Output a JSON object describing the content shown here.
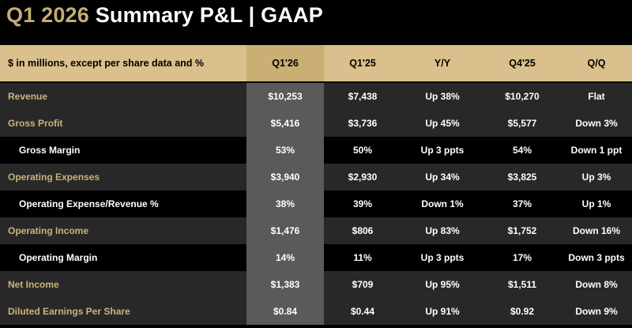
{
  "title": {
    "period": "Q1 2026",
    "rest": "Summary P&L  |  GAAP"
  },
  "header": {
    "label": "$ in millions, except per share data and %",
    "cols": [
      "Q1'26",
      "Q1'25",
      "Y/Y",
      "Q4'25",
      "Q/Q"
    ]
  },
  "rows": [
    {
      "label": "Revenue",
      "type": "main",
      "values": [
        "$10,253",
        "$7,438",
        "Up 38%",
        "$10,270",
        "Flat"
      ]
    },
    {
      "label": "Gross Profit",
      "type": "main",
      "values": [
        "$5,416",
        "$3,736",
        "Up 45%",
        "$5,577",
        "Down 3%"
      ]
    },
    {
      "label": "Gross Margin",
      "type": "sub",
      "values": [
        "53%",
        "50%",
        "Up 3 ppts",
        "54%",
        "Down 1 ppt"
      ]
    },
    {
      "label": "Operating Expenses",
      "type": "main",
      "values": [
        "$3,940",
        "$2,930",
        "Up 34%",
        "$3,825",
        "Up 3%"
      ]
    },
    {
      "label": "Operating Expense/Revenue %",
      "type": "sub",
      "values": [
        "38%",
        "39%",
        "Down 1%",
        "37%",
        "Up 1%"
      ]
    },
    {
      "label": "Operating Income",
      "type": "main",
      "values": [
        "$1,476",
        "$806",
        "Up 83%",
        "$1,752",
        "Down 16%"
      ]
    },
    {
      "label": "Operating Margin",
      "type": "sub",
      "values": [
        "14%",
        "11%",
        "Up 3 ppts",
        "17%",
        "Down 3 ppts"
      ]
    },
    {
      "label": "Net Income",
      "type": "main",
      "values": [
        "$1,383",
        "$709",
        "Up 95%",
        "$1,511",
        "Down 8%"
      ]
    },
    {
      "label": "Diluted Earnings Per Share",
      "type": "main",
      "values": [
        "$0.84",
        "$0.44",
        "Up 91%",
        "$0.92",
        "Down 9%"
      ]
    }
  ],
  "colors": {
    "gold": "#c4ad74",
    "header_bg": "#d9c08c",
    "highlight_col": "#5a5a5a",
    "row_dark": "#282828"
  }
}
